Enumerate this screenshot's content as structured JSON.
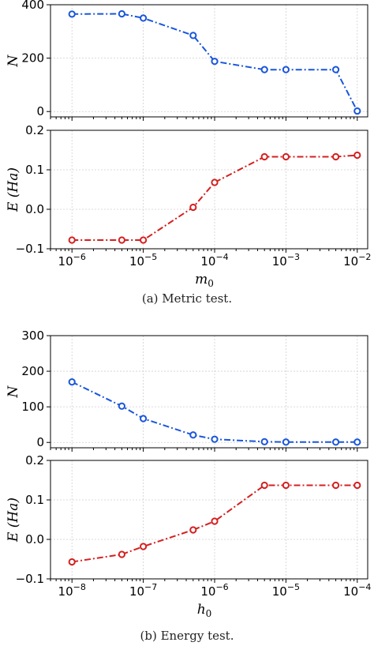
{
  "chart_data": [
    {
      "type": "line",
      "title": "",
      "ylabel": "N",
      "xscale": "log",
      "xlim": [
        5e-07,
        0.014
      ],
      "ylim": [
        -20,
        400
      ],
      "yticks": [
        0,
        200,
        400
      ],
      "ytick_labels": [
        "0",
        "200",
        "400"
      ],
      "grid": true,
      "series": [
        {
          "color": "#1a56db",
          "style": "dash-dot",
          "marker": "circle",
          "x": [
            1e-06,
            5e-06,
            1e-05,
            5e-05,
            0.0001,
            0.0005,
            0.001,
            0.005,
            0.01
          ],
          "y": [
            365,
            366,
            350,
            285,
            188,
            157,
            157,
            157,
            2
          ]
        }
      ]
    },
    {
      "type": "line",
      "title": "",
      "xlabel_main": "m",
      "xlabel_sub": "0",
      "ylabel": "E (Ha)",
      "xscale": "log",
      "xlim": [
        5e-07,
        0.014
      ],
      "ylim": [
        -0.1,
        0.2
      ],
      "yticks": [
        -0.1,
        0.0,
        0.1,
        0.2
      ],
      "ytick_labels": [
        "−0.1",
        "0.0",
        "0.1",
        "0.2"
      ],
      "xtick_exponents": [
        "−6",
        "−5",
        "−4",
        "−3",
        "−2"
      ],
      "xtick_values": [
        1e-06,
        1e-05,
        0.0001,
        0.001,
        0.01
      ],
      "grid": true,
      "series": [
        {
          "color": "#d42020",
          "style": "dash-dot",
          "marker": "circle",
          "x": [
            1e-06,
            5e-06,
            1e-05,
            5e-05,
            0.0001,
            0.0005,
            0.001,
            0.005,
            0.01
          ],
          "y": [
            -0.078,
            -0.078,
            -0.078,
            0.005,
            0.068,
            0.133,
            0.133,
            0.133,
            0.137
          ]
        }
      ]
    },
    {
      "type": "line",
      "title": "",
      "ylabel": "N",
      "xscale": "log",
      "xlim": [
        5e-09,
        0.00014
      ],
      "ylim": [
        -15,
        300
      ],
      "yticks": [
        0,
        100,
        200,
        300
      ],
      "ytick_labels": [
        "0",
        "100",
        "200",
        "300"
      ],
      "grid": true,
      "series": [
        {
          "color": "#1a56db",
          "style": "dash-dot",
          "marker": "circle",
          "x": [
            1e-08,
            5e-08,
            1e-07,
            5e-07,
            1e-06,
            5e-06,
            1e-05,
            5e-05,
            0.0001
          ],
          "y": [
            170,
            102,
            67,
            21,
            9,
            2,
            1,
            1,
            1
          ]
        }
      ]
    },
    {
      "type": "line",
      "title": "",
      "xlabel_main": "h",
      "xlabel_sub": "0",
      "ylabel": "E (Ha)",
      "xscale": "log",
      "xlim": [
        5e-09,
        0.00014
      ],
      "ylim": [
        -0.1,
        0.2
      ],
      "yticks": [
        -0.1,
        0.0,
        0.1,
        0.2
      ],
      "ytick_labels": [
        "−0.1",
        "0.0",
        "0.1",
        "0.2"
      ],
      "xtick_exponents": [
        "−8",
        "−7",
        "−6",
        "−5",
        "−4"
      ],
      "xtick_values": [
        1e-08,
        1e-07,
        1e-06,
        1e-05,
        0.0001
      ],
      "grid": true,
      "series": [
        {
          "color": "#d42020",
          "style": "dash-dot",
          "marker": "circle",
          "x": [
            1e-08,
            5e-08,
            1e-07,
            5e-07,
            1e-06,
            5e-06,
            1e-05,
            5e-05,
            0.0001
          ],
          "y": [
            -0.057,
            -0.038,
            -0.018,
            0.024,
            0.046,
            0.137,
            0.137,
            0.137,
            0.137
          ]
        }
      ]
    }
  ],
  "captions": [
    "(a) Metric test.",
    "(b) Energy test."
  ],
  "tick_base": "10"
}
